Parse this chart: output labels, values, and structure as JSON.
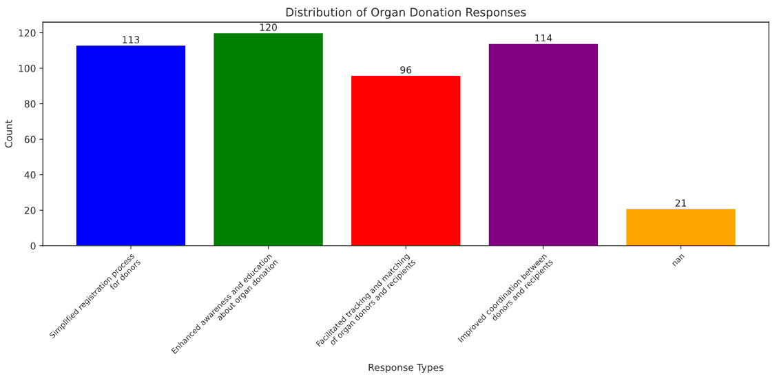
{
  "chart_data": {
    "type": "bar",
    "title": "Distribution of Organ Donation Responses",
    "xlabel": "Response Types",
    "ylabel": "Count",
    "categories": [
      "Simplified registration process\nfor donors",
      "Enhanced awareness and education\nabout organ donation",
      "Facilitated tracking and matching\nof organ donors and recipients",
      "Improved coordination between\ndonors and recipients",
      "nan"
    ],
    "values": [
      113,
      120,
      96,
      114,
      21
    ],
    "colors": [
      "#0000ff",
      "#008000",
      "#ff0000",
      "#800080",
      "#ffa500"
    ],
    "ylim": [
      0,
      126
    ],
    "yticks": [
      0,
      20,
      40,
      60,
      80,
      100,
      120
    ],
    "grid": false,
    "legend": false,
    "data_labels": true
  }
}
